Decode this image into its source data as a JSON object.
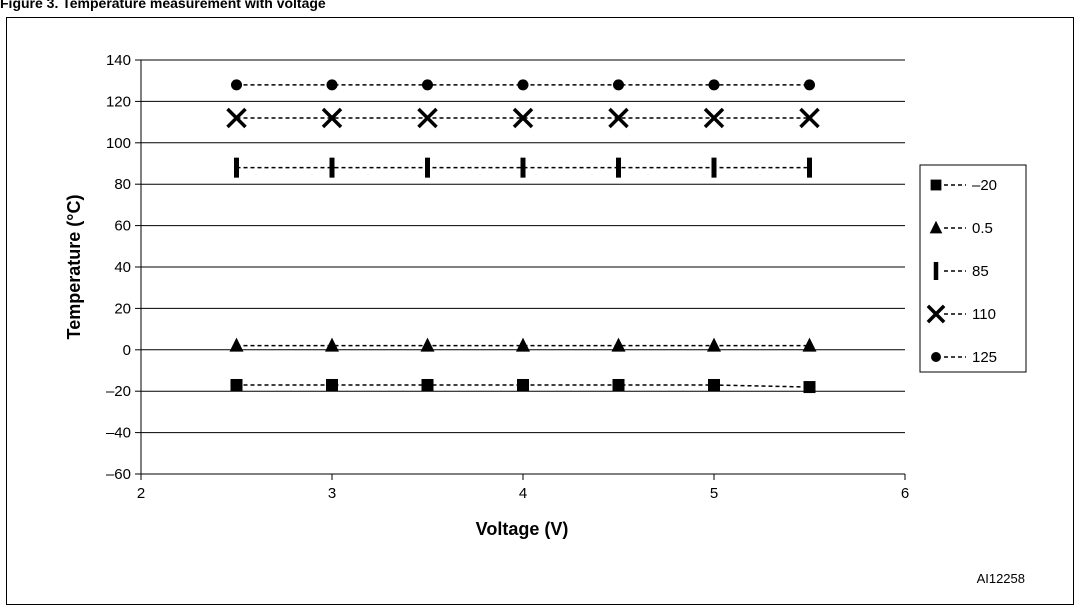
{
  "chart_data": {
    "type": "line",
    "xlabel": "Voltage (V)",
    "ylabel": "Temperature (°C)",
    "xlim": [
      2,
      6
    ],
    "ylim": [
      -60,
      140
    ],
    "xticks": [
      "2",
      "3",
      "4",
      "5",
      "6"
    ],
    "yticks": [
      "140",
      "120",
      "100",
      "80",
      "60",
      "40",
      "20",
      "0",
      "–20",
      "–40",
      "–60"
    ],
    "grid": "horizontal",
    "legend_position": "right",
    "x": [
      2.5,
      3,
      3.5,
      4,
      4.5,
      5,
      5.5
    ],
    "series": [
      {
        "name": "–20",
        "marker": "square",
        "values": [
          -17,
          -17,
          -17,
          -17,
          -17,
          -17,
          -18
        ]
      },
      {
        "name": "0.5",
        "marker": "triangle",
        "values": [
          2,
          2,
          2,
          2,
          2,
          2,
          2
        ]
      },
      {
        "name": "85",
        "marker": "bar",
        "values": [
          88,
          88,
          88,
          88,
          88,
          88,
          88
        ]
      },
      {
        "name": "110",
        "marker": "cross",
        "values": [
          112,
          112,
          112,
          112,
          112,
          112,
          112
        ]
      },
      {
        "name": "125",
        "marker": "circle",
        "values": [
          128,
          128,
          128,
          128,
          128,
          128,
          128
        ]
      }
    ],
    "figure_code": "AI12258"
  },
  "header_fragment": "Figure 3. Temperature measurement with voltage"
}
